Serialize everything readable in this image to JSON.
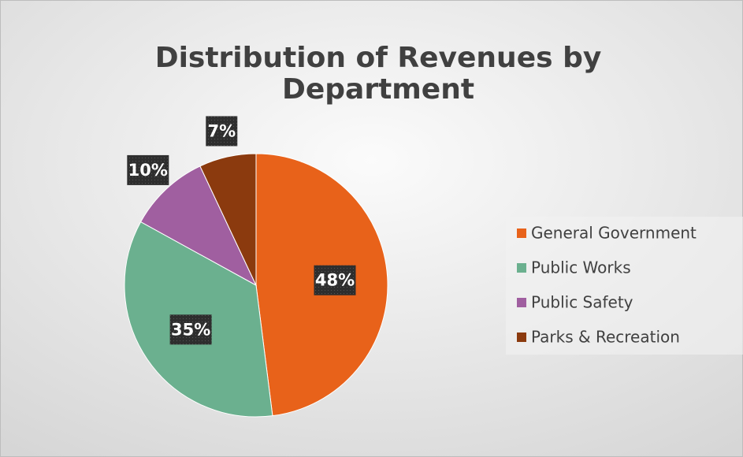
{
  "chart_data": {
    "type": "pie",
    "title": "Distribution of Revenues by Department",
    "categories": [
      "General Government",
      "Public Works",
      "Public Safety",
      "Parks & Recreation"
    ],
    "values": [
      48,
      35,
      10,
      7
    ],
    "value_labels": [
      "48%",
      "35%",
      "10%",
      "7%"
    ],
    "colors": [
      "#e8621a",
      "#6bb08f",
      "#a05fa0",
      "#8b3a0e"
    ],
    "legend": "right"
  }
}
